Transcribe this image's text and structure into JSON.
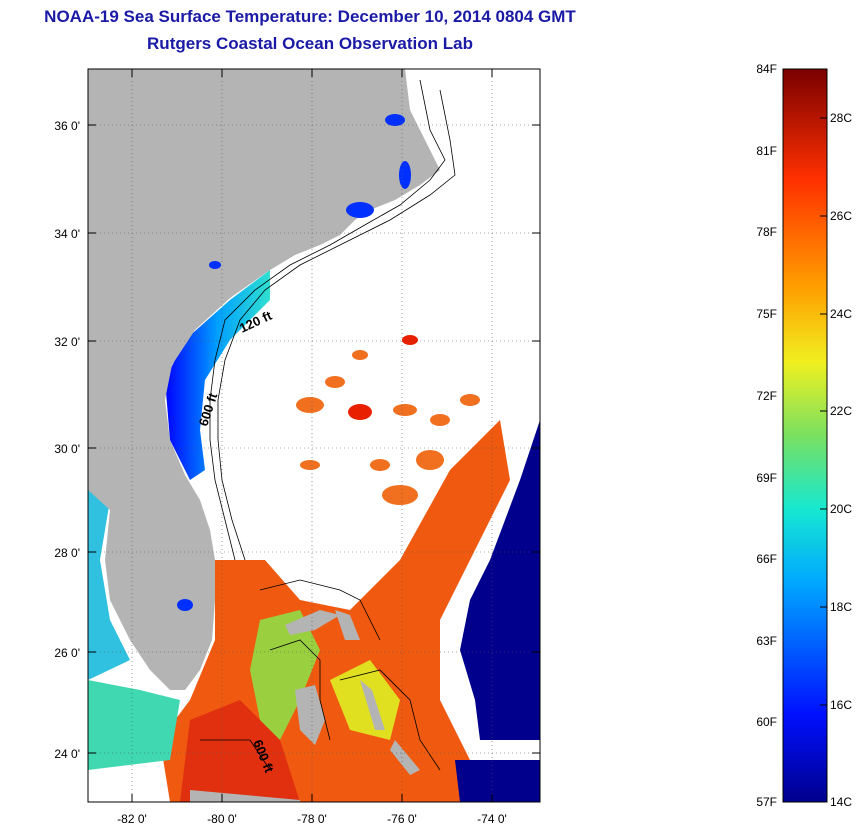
{
  "header": {
    "title": "NOAA-19 Sea Surface Temperature:  December 10, 2014 0804 GMT",
    "subtitle": "Rutgers Coastal Ocean Observation Lab"
  },
  "map": {
    "lat_labels": [
      "36 0'",
      "34 0'",
      "32 0'",
      "30 0'",
      "28 0'",
      "26 0'",
      "24 0'"
    ],
    "lon_labels": [
      "-82 0'",
      "-80 0'",
      "-78 0'",
      "-76 0'",
      "-74 0'"
    ],
    "contour_labels": [
      "120 ft",
      "600 ft",
      "600 ft"
    ],
    "colors": {
      "land": "#b4b4b4",
      "cloud": "#ffffff",
      "cold_ocean": "#00008c"
    }
  },
  "colorbar": {
    "fahrenheit_labels": [
      "84F",
      "81F",
      "78F",
      "75F",
      "72F",
      "69F",
      "66F",
      "63F",
      "60F",
      "57F"
    ],
    "celsius_labels": [
      "28C",
      "26C",
      "24C",
      "22C",
      "20C",
      "18C",
      "16C",
      "14C"
    ],
    "range_c": [
      14,
      29
    ]
  }
}
